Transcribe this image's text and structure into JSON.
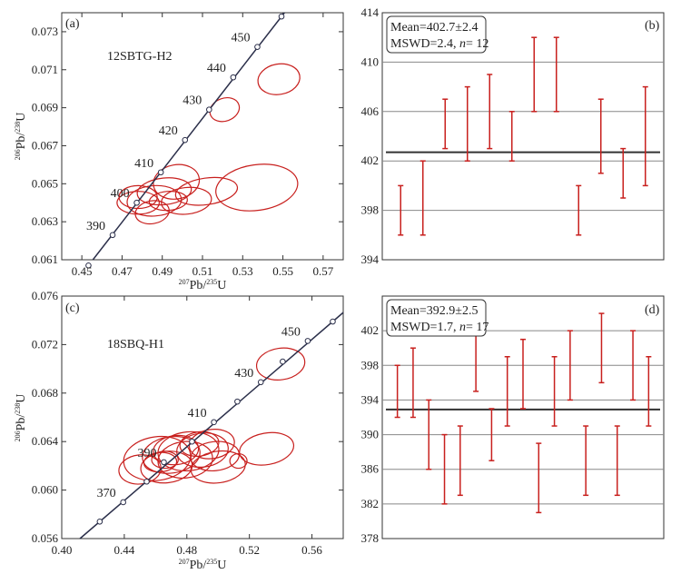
{
  "chart_data": [
    {
      "panel": "(a)",
      "type": "scatter",
      "sample": "12SBTG-H2",
      "xlabel": {
        "pre": "207",
        "mid": "Pb/",
        "sup2": "235",
        "end": "U"
      },
      "ylabel": {
        "pre": "206",
        "mid": "Pb/",
        "sup2": "238",
        "end": "U"
      },
      "xlim": [
        0.44,
        0.58
      ],
      "ylim": [
        0.061,
        0.074
      ],
      "xticks": [
        0.45,
        0.47,
        0.49,
        0.51,
        0.53,
        0.55,
        0.57
      ],
      "xtick_labels": [
        "0.45",
        "0.47",
        "0.49",
        "0.51",
        "0.53",
        "0.55",
        "0.57"
      ],
      "yticks": [
        0.061,
        0.063,
        0.065,
        0.067,
        0.069,
        0.071,
        0.073
      ],
      "ytick_labels": [
        "0.061",
        "0.063",
        "0.065",
        "0.067",
        "0.069",
        "0.071",
        "0.073"
      ],
      "concordia": [
        {
          "age": 380,
          "label": "",
          "x": 0.4533,
          "y": 0.0607
        },
        {
          "age": 390,
          "label": "390",
          "x": 0.4653,
          "y": 0.0623
        },
        {
          "age": 400,
          "label": "400",
          "x": 0.4773,
          "y": 0.064
        },
        {
          "age": 410,
          "label": "410",
          "x": 0.4893,
          "y": 0.0656
        },
        {
          "age": 420,
          "label": "420",
          "x": 0.5013,
          "y": 0.0673
        },
        {
          "age": 430,
          "label": "430",
          "x": 0.5133,
          "y": 0.0689
        },
        {
          "age": 440,
          "label": "440",
          "x": 0.5253,
          "y": 0.0706
        },
        {
          "age": 450,
          "label": "450",
          "x": 0.5373,
          "y": 0.0722
        },
        {
          "age": 460,
          "label": "",
          "x": 0.5493,
          "y": 0.0738
        }
      ],
      "ellipses": [
        {
          "x": 0.521,
          "y": 0.0689,
          "rx": 0.0075,
          "ry": 0.0006,
          "rot": -20
        },
        {
          "x": 0.548,
          "y": 0.0705,
          "rx": 0.0105,
          "ry": 0.0008,
          "rot": -10
        },
        {
          "x": 0.497,
          "y": 0.0651,
          "rx": 0.0115,
          "ry": 0.0009,
          "rot": -10
        },
        {
          "x": 0.491,
          "y": 0.0646,
          "rx": 0.0135,
          "ry": 0.0007,
          "rot": -6
        },
        {
          "x": 0.478,
          "y": 0.0643,
          "rx": 0.0095,
          "ry": 0.0006,
          "rot": 0
        },
        {
          "x": 0.486,
          "y": 0.0641,
          "rx": 0.0135,
          "ry": 0.0008,
          "rot": -4
        },
        {
          "x": 0.512,
          "y": 0.0646,
          "rx": 0.0155,
          "ry": 0.0007,
          "rot": -8
        },
        {
          "x": 0.537,
          "y": 0.0648,
          "rx": 0.0205,
          "ry": 0.0012,
          "rot": -8
        },
        {
          "x": 0.493,
          "y": 0.0641,
          "rx": 0.0095,
          "ry": 0.0005,
          "rot": -4
        },
        {
          "x": 0.502,
          "y": 0.0641,
          "rx": 0.0125,
          "ry": 0.0007,
          "rot": -6
        },
        {
          "x": 0.485,
          "y": 0.0635,
          "rx": 0.0085,
          "ry": 0.0006,
          "rot": -10
        },
        {
          "x": 0.478,
          "y": 0.064,
          "rx": 0.0105,
          "ry": 0.0006,
          "rot": 0
        }
      ]
    },
    {
      "panel": "(b)",
      "type": "errorbar",
      "summary": {
        "mean": "Mean=402.7±2.4",
        "mswd": "MSWD=2.4,",
        "n_label": "n",
        "n_value": "= 12"
      },
      "ylim": [
        394,
        414
      ],
      "yticks": [
        394,
        398,
        402,
        406,
        410,
        414
      ],
      "ytick_labels": [
        "394",
        "398",
        "402",
        "406",
        "410",
        "414"
      ],
      "gridlines": [
        398,
        402,
        406,
        410
      ],
      "mean": 402.7,
      "bars": [
        {
          "low": 396,
          "high": 400
        },
        {
          "low": 396,
          "high": 402
        },
        {
          "low": 403,
          "high": 407
        },
        {
          "low": 402,
          "high": 408
        },
        {
          "low": 403,
          "high": 409
        },
        {
          "low": 402,
          "high": 406
        },
        {
          "low": 406,
          "high": 412
        },
        {
          "low": 406,
          "high": 412
        },
        {
          "low": 396,
          "high": 400
        },
        {
          "low": 401,
          "high": 407
        },
        {
          "low": 399,
          "high": 403
        },
        {
          "low": 400,
          "high": 408
        }
      ]
    },
    {
      "panel": "(c)",
      "type": "scatter",
      "sample": "18SBQ-H1",
      "xlabel": {
        "pre": "207",
        "mid": "Pb/",
        "sup2": "235",
        "end": "U"
      },
      "ylabel": {
        "pre": "206",
        "mid": "Pb/",
        "sup2": "238",
        "end": "U"
      },
      "xlim": [
        0.4,
        0.58
      ],
      "ylim": [
        0.056,
        0.076
      ],
      "xticks": [
        0.4,
        0.44,
        0.48,
        0.52,
        0.56
      ],
      "xtick_labels": [
        "0.40",
        "0.44",
        "0.48",
        "0.52",
        "0.56"
      ],
      "yticks": [
        0.056,
        0.06,
        0.064,
        0.068,
        0.072,
        0.076
      ],
      "ytick_labels": [
        "0.056",
        "0.060",
        "0.064",
        "0.068",
        "0.072",
        "0.076"
      ],
      "concordia": [
        {
          "age": 360,
          "label": "",
          "x": 0.4243,
          "y": 0.0574
        },
        {
          "age": 370,
          "label": "370",
          "x": 0.4393,
          "y": 0.059
        },
        {
          "age": 380,
          "label": "",
          "x": 0.4543,
          "y": 0.0607
        },
        {
          "age": 390,
          "label": "390",
          "x": 0.4653,
          "y": 0.0623
        },
        {
          "age": 400,
          "label": "",
          "x": 0.4833,
          "y": 0.064
        },
        {
          "age": 410,
          "label": "410",
          "x": 0.4973,
          "y": 0.0656
        },
        {
          "age": 420,
          "label": "",
          "x": 0.5123,
          "y": 0.0673
        },
        {
          "age": 430,
          "label": "430",
          "x": 0.5273,
          "y": 0.0689
        },
        {
          "age": 440,
          "label": "",
          "x": 0.5413,
          "y": 0.0706
        },
        {
          "age": 450,
          "label": "450",
          "x": 0.5573,
          "y": 0.0723
        },
        {
          "age": 460,
          "label": "",
          "x": 0.5733,
          "y": 0.0739
        }
      ],
      "ellipses": [
        {
          "x": 0.54,
          "y": 0.0704,
          "rx": 0.0155,
          "ry": 0.0013,
          "rot": -8
        },
        {
          "x": 0.461,
          "y": 0.0626,
          "rx": 0.0215,
          "ry": 0.0018,
          "rot": -8
        },
        {
          "x": 0.481,
          "y": 0.0632,
          "rx": 0.0195,
          "ry": 0.0016,
          "rot": -6
        },
        {
          "x": 0.496,
          "y": 0.0638,
          "rx": 0.0145,
          "ry": 0.0012,
          "rot": -8
        },
        {
          "x": 0.49,
          "y": 0.0633,
          "rx": 0.0165,
          "ry": 0.0014,
          "rot": -6
        },
        {
          "x": 0.47,
          "y": 0.0629,
          "rx": 0.0185,
          "ry": 0.0015,
          "rot": -8
        },
        {
          "x": 0.45,
          "y": 0.0617,
          "rx": 0.0135,
          "ry": 0.0012,
          "rot": -6
        },
        {
          "x": 0.467,
          "y": 0.0619,
          "rx": 0.0165,
          "ry": 0.0013,
          "rot": -6
        },
        {
          "x": 0.5,
          "y": 0.0619,
          "rx": 0.0175,
          "ry": 0.0013,
          "rot": -8
        },
        {
          "x": 0.531,
          "y": 0.0634,
          "rx": 0.0175,
          "ry": 0.0013,
          "rot": -10
        },
        {
          "x": 0.479,
          "y": 0.0625,
          "rx": 0.0175,
          "ry": 0.0015,
          "rot": -6
        },
        {
          "x": 0.463,
          "y": 0.0623,
          "rx": 0.0105,
          "ry": 0.0008,
          "rot": -4
        },
        {
          "x": 0.488,
          "y": 0.0638,
          "rx": 0.0125,
          "ry": 0.001,
          "rot": -8
        },
        {
          "x": 0.466,
          "y": 0.0625,
          "rx": 0.0085,
          "ry": 0.0007,
          "rot": 0
        },
        {
          "x": 0.513,
          "y": 0.0624,
          "rx": 0.0055,
          "ry": 0.0006,
          "rot": 0
        },
        {
          "x": 0.473,
          "y": 0.0633,
          "rx": 0.0145,
          "ry": 0.0012,
          "rot": -6
        },
        {
          "x": 0.498,
          "y": 0.0628,
          "rx": 0.0155,
          "ry": 0.0012,
          "rot": -6
        }
      ]
    },
    {
      "panel": "(d)",
      "type": "errorbar",
      "summary": {
        "mean": "Mean=392.9±2.5",
        "mswd": "MSWD=1.7,",
        "n_label": "n",
        "n_value": "= 17"
      },
      "ylim": [
        378,
        406
      ],
      "yticks": [
        378,
        382,
        386,
        390,
        394,
        398,
        402
      ],
      "ytick_labels": [
        "378",
        "382",
        "386",
        "390",
        "394",
        "398",
        "402"
      ],
      "gridlines": [
        382,
        386,
        390,
        394,
        398,
        402
      ],
      "mean": 392.9,
      "bars": [
        {
          "low": 392,
          "high": 398
        },
        {
          "low": 392,
          "high": 400
        },
        {
          "low": 386,
          "high": 394
        },
        {
          "low": 382,
          "high": 390
        },
        {
          "low": 383,
          "high": 391
        },
        {
          "low": 395,
          "high": 403
        },
        {
          "low": 387,
          "high": 393
        },
        {
          "low": 391,
          "high": 399
        },
        {
          "low": 393,
          "high": 401
        },
        {
          "low": 381,
          "high": 389
        },
        {
          "low": 391,
          "high": 399
        },
        {
          "low": 394,
          "high": 402
        },
        {
          "low": 383,
          "high": 391
        },
        {
          "low": 396,
          "high": 404
        },
        {
          "low": 383,
          "high": 391
        },
        {
          "low": 394,
          "high": 402
        },
        {
          "low": 391,
          "high": 399
        }
      ]
    }
  ],
  "colors": {
    "ellipse": "#c8201e",
    "errorbar": "#c8201e",
    "concordia": "#2b2f4a",
    "meanline": "#333333",
    "grid": "#888888"
  }
}
